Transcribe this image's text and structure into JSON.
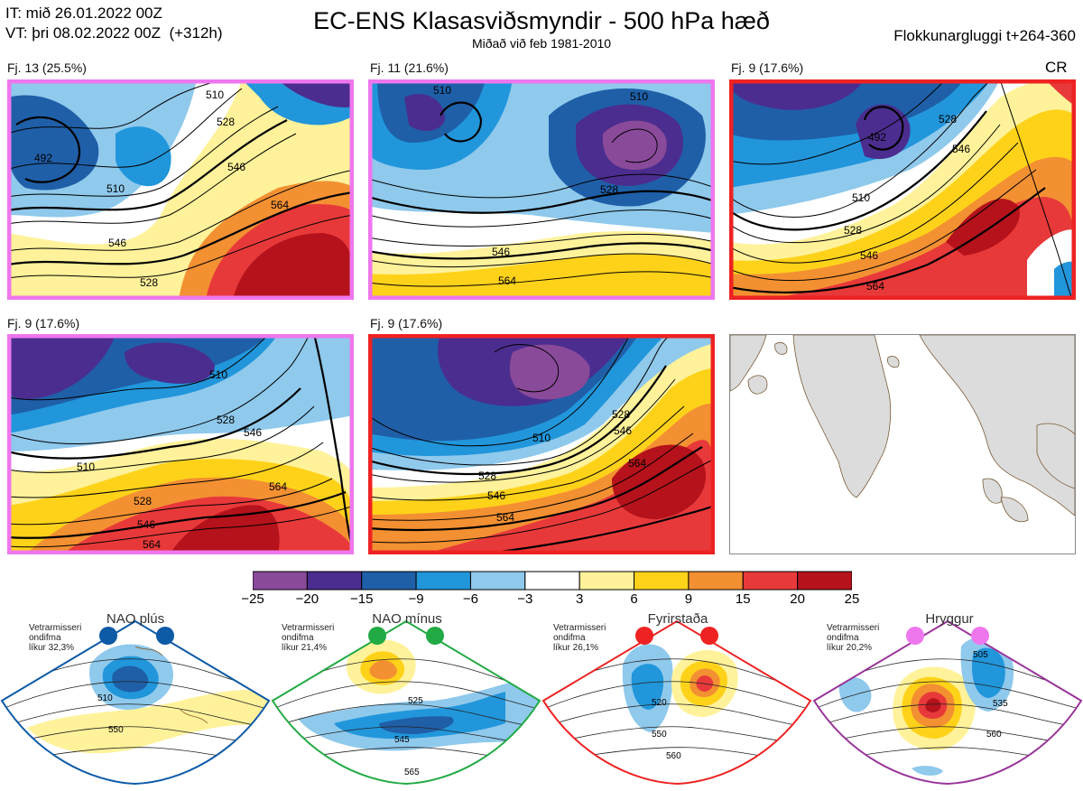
{
  "header": {
    "it_line": "IT: mið 26.01.2022 00Z",
    "vt_line": "VT: þri 08.02.2022 00Z  (+312h)",
    "title": "EC-ENS Klasasviðsmyndir - 500 hPa hæð",
    "subtitle": "Miðað við feb 1981-2010",
    "window": "Flokkunargluggi t+264-360"
  },
  "colors": {
    "pink_border": "#ee77ee",
    "red_border": "#ee2222",
    "land": "#dcdcdc",
    "coast": "#7a5c3a",
    "nao_plus": "#0d5aa7",
    "nao_minus": "#22aa44",
    "blocking": "#ee2222",
    "ridge": "#ee77ee"
  },
  "clusters": [
    {
      "label": "Fj. 13 (25.5%)",
      "border": "pink",
      "contour_labels": [
        "510",
        "528",
        "546",
        "564",
        "492",
        "546",
        "528",
        "510"
      ]
    },
    {
      "label": "Fj. 11 (21.6%)",
      "border": "pink",
      "contour_labels": [
        "510",
        "528",
        "546",
        "564",
        "510"
      ]
    },
    {
      "label": "Fj. 9 (17.6%)",
      "border": "red",
      "tag": "CR",
      "contour_labels": [
        "492",
        "510",
        "528",
        "546",
        "564",
        "528",
        "546"
      ]
    },
    {
      "label": "Fj. 9 (17.6%)",
      "border": "pink",
      "contour_labels": [
        "510",
        "528",
        "546",
        "564",
        "510",
        "528",
        "546",
        "564"
      ]
    },
    {
      "label": "Fj. 9 (17.6%)",
      "border": "red",
      "contour_labels": [
        "510",
        "528",
        "546",
        "564",
        "528",
        "546",
        "564"
      ]
    }
  ],
  "legend": {
    "ticks": [
      "−25",
      "−20",
      "−15",
      "−9",
      "−6",
      "−3",
      "3",
      "6",
      "9",
      "15",
      "20",
      "25"
    ],
    "colors": [
      "#8a4a9a",
      "#4b2d8f",
      "#1f5fa8",
      "#2196db",
      "#8fc9ec",
      "#ffffff",
      "#fff29a",
      "#ffd21a",
      "#f39032",
      "#e8393a",
      "#b5121b"
    ]
  },
  "regimes": [
    {
      "title": "NAO plús",
      "note": [
        "Vetrarmisseri",
        "ondifma",
        "líkur 32,3%"
      ],
      "color": "#0d5aa7",
      "contour_labels": [
        "510",
        "550"
      ]
    },
    {
      "title": "NAO mínus",
      "note": [
        "Vetrarmisseri",
        "ondifma",
        "líkur 21,4%"
      ],
      "color": "#22aa44",
      "contour_labels": [
        "525",
        "545",
        "565"
      ]
    },
    {
      "title": "Fyrirstaða",
      "note": [
        "Vetrarmisseri",
        "ondifma",
        "líkur 26,1%"
      ],
      "color": "#ee2222",
      "contour_labels": [
        "520",
        "550",
        "560"
      ]
    },
    {
      "title": "Hryggur",
      "note": [
        "Vetrarmisseri",
        "ondifma",
        "líkur 20,2%"
      ],
      "color": "#aa44aa",
      "contour_labels": [
        "505",
        "535",
        "560"
      ]
    }
  ]
}
